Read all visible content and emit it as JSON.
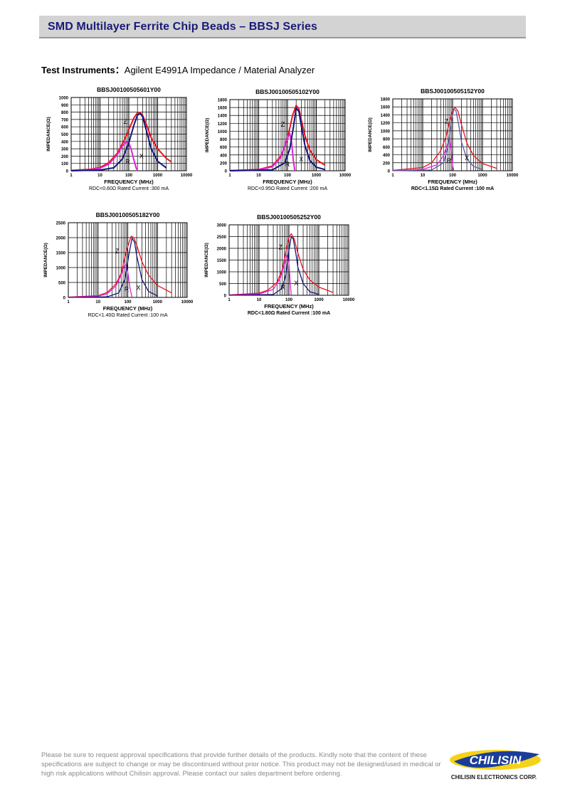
{
  "header": {
    "title": "SMD Multilayer Ferrite Chip Beads – BBSJ Series"
  },
  "instruments": {
    "label": "Test Instruments：",
    "value": "Agilent E4991A Impedance / Material Analyzer"
  },
  "chart_data": [
    {
      "type": "line",
      "title": "BBSJ00100505601Y00",
      "xlabel": "FREQUENCY  (MHz)",
      "ylabel": "IMPEDANCE(Ω)",
      "xscale": "log",
      "xlim": [
        1,
        10000
      ],
      "ylim": [
        0,
        1000
      ],
      "xticks": [
        "1",
        "10",
        "100",
        "1000",
        "10000"
      ],
      "yticks": [
        "0",
        "100",
        "200",
        "300",
        "400",
        "500",
        "600",
        "700",
        "800",
        "900",
        "1000"
      ],
      "caption": "RDC<0.60Ω  Rated Current :300 mA",
      "curve_labels": [
        "Z",
        "R",
        "X"
      ],
      "series": [
        {
          "name": "Z",
          "color": "#e8121e",
          "x": [
            1,
            5,
            10,
            20,
            40,
            70,
            100,
            150,
            200,
            250,
            300,
            400,
            600,
            1000,
            2000,
            3000
          ],
          "values": [
            5,
            20,
            45,
            110,
            240,
            420,
            560,
            720,
            790,
            790,
            760,
            640,
            450,
            300,
            170,
            120
          ]
        },
        {
          "name": "R",
          "color": "#e020d8",
          "x": [
            1,
            5,
            10,
            20,
            40,
            60,
            80,
            100,
            120,
            150,
            180,
            200
          ],
          "values": [
            3,
            15,
            35,
            90,
            220,
            340,
            390,
            380,
            300,
            150,
            40,
            0
          ]
        },
        {
          "name": "X",
          "color": "#15157a",
          "x": [
            1,
            10,
            30,
            60,
            100,
            150,
            200,
            250,
            300,
            400,
            600,
            1000,
            2000
          ],
          "values": [
            0,
            10,
            40,
            160,
            380,
            620,
            760,
            780,
            740,
            560,
            300,
            130,
            40
          ]
        }
      ]
    },
    {
      "type": "line",
      "title": "BBSJ00100505102Y00",
      "xlabel": "FREQUENCY  (MHz)",
      "ylabel": "IMPEDANCE(Ω)",
      "xscale": "log",
      "xlim": [
        1,
        10000
      ],
      "ylim": [
        0,
        1800
      ],
      "xticks": [
        "1",
        "10",
        "100",
        "1000",
        "10000"
      ],
      "yticks": [
        "0",
        "200",
        "400",
        "600",
        "800",
        "1000",
        "1200",
        "1400",
        "1600",
        "1800"
      ],
      "caption": "RDC<0.95Ω  Rated Current :200 mA",
      "curve_labels": [
        "Z",
        "R",
        "X"
      ],
      "series": [
        {
          "name": "Z",
          "color": "#e8121e",
          "x": [
            1,
            10,
            30,
            60,
            100,
            150,
            200,
            250,
            300,
            400,
            600,
            1000,
            2000
          ],
          "values": [
            5,
            30,
            120,
            380,
            800,
            1400,
            1650,
            1560,
            1300,
            900,
            520,
            280,
            140
          ]
        },
        {
          "name": "R",
          "color": "#e020d8",
          "x": [
            1,
            10,
            30,
            60,
            90,
            120,
            140,
            160,
            180
          ],
          "values": [
            2,
            20,
            100,
            350,
            750,
            950,
            700,
            250,
            0
          ]
        },
        {
          "name": "X",
          "color": "#15157a",
          "x": [
            1,
            30,
            80,
            120,
            160,
            200,
            250,
            300,
            400,
            600,
            1000,
            2000
          ],
          "values": [
            0,
            20,
            200,
            550,
            1100,
            1580,
            1500,
            1150,
            650,
            260,
            90,
            30
          ]
        }
      ]
    },
    {
      "type": "line",
      "title": "BBSJ00100505152Y00",
      "xlabel": "FREQUENCY (MHz)",
      "ylabel": "IMPEDANCE(Ω)",
      "xscale": "log",
      "xlim": [
        1,
        10000
      ],
      "ylim": [
        0,
        1800
      ],
      "xticks": [
        "1",
        "10",
        "100",
        "1000",
        "10000"
      ],
      "yticks": [
        "0",
        "200",
        "400",
        "600",
        "800",
        "1000",
        "1200",
        "1400",
        "1600",
        "1800"
      ],
      "caption": "RDC<1.15Ω Rated Current :100 mA",
      "curve_labels": [
        "Z",
        "R",
        "X"
      ],
      "series": [
        {
          "name": "Z",
          "color": "#e8121e",
          "x": [
            1,
            10,
            20,
            40,
            60,
            80,
            100,
            120,
            150,
            200,
            300,
            500,
            1000,
            3000
          ],
          "values": [
            10,
            80,
            200,
            500,
            850,
            1250,
            1500,
            1590,
            1500,
            1150,
            700,
            380,
            180,
            60
          ]
        },
        {
          "name": "R",
          "color": "#e020d8",
          "x": [
            1,
            10,
            30,
            50,
            70,
            80,
            90,
            100,
            110
          ],
          "values": [
            2,
            30,
            150,
            380,
            700,
            780,
            500,
            150,
            0
          ]
        },
        {
          "name": "X",
          "color": "#5a5aa0",
          "x": [
            1,
            20,
            50,
            70,
            90,
            110,
            130,
            160,
            200,
            300,
            500,
            1000
          ],
          "values": [
            0,
            20,
            200,
            600,
            1200,
            1550,
            1500,
            1150,
            720,
            300,
            110,
            30
          ]
        }
      ]
    },
    {
      "type": "line",
      "title": "BBSJ00100505182Y00",
      "xlabel": "FREQUENCY  (MHz)",
      "ylabel": "IMPEDANCE(Ω)",
      "xscale": "log",
      "xlim": [
        1,
        10000
      ],
      "ylim": [
        0,
        2500
      ],
      "xticks": [
        "1",
        "10",
        "100",
        "1000",
        "10000"
      ],
      "yticks": [
        "0",
        "500",
        "1000",
        "1500",
        "2000",
        "2500"
      ],
      "caption": "RDC<1.40Ω  Rated Current :100 mA",
      "curve_labels": [
        "Z",
        "R",
        "X"
      ],
      "series": [
        {
          "name": "Z",
          "color": "#e8121e",
          "x": [
            1,
            10,
            20,
            40,
            60,
            80,
            100,
            130,
            160,
            200,
            300,
            500,
            1000,
            3000
          ],
          "values": [
            8,
            60,
            160,
            450,
            800,
            1350,
            1700,
            2050,
            2000,
            1750,
            1200,
            750,
            400,
            150
          ]
        },
        {
          "name": "R",
          "color": "#e020d8",
          "x": [
            1,
            10,
            20,
            40,
            60,
            80,
            90,
            100,
            120,
            140
          ],
          "values": [
            3,
            40,
            120,
            380,
            750,
            1100,
            1050,
            850,
            300,
            0
          ]
        },
        {
          "name": "X",
          "color": "#15157a",
          "x": [
            1,
            20,
            50,
            80,
            110,
            140,
            170,
            200,
            300,
            500,
            1000
          ],
          "values": [
            0,
            20,
            150,
            600,
            1450,
            1980,
            1850,
            1400,
            600,
            200,
            50
          ]
        }
      ]
    },
    {
      "type": "line",
      "title": "BBSJ00100505252Y00",
      "xlabel": "FREQUENCY (MHz)",
      "ylabel": "IMPEDANCE(Ω)",
      "xscale": "log",
      "xlim": [
        1,
        10000
      ],
      "ylim": [
        0,
        3000
      ],
      "xticks": [
        "1",
        "10",
        "100",
        "1000",
        "10000"
      ],
      "yticks": [
        "0",
        "500",
        "1000",
        "1500",
        "2000",
        "2500",
        "3000"
      ],
      "caption": "RDC<1.80Ω Rated Current :100 mA",
      "curve_labels": [
        "Z",
        "R",
        "X"
      ],
      "series": [
        {
          "name": "Z",
          "color": "#e8121e",
          "x": [
            1,
            10,
            20,
            40,
            60,
            80,
            100,
            120,
            150,
            200,
            300,
            500,
            1000,
            3000
          ],
          "values": [
            15,
            90,
            220,
            550,
            1100,
            1900,
            2450,
            2620,
            2400,
            1800,
            1100,
            650,
            350,
            120
          ]
        },
        {
          "name": "R",
          "color": "#e020d8",
          "x": [
            1,
            10,
            30,
            50,
            70,
            85,
            100,
            110,
            120
          ],
          "values": [
            5,
            50,
            250,
            700,
            1300,
            1700,
            1400,
            600,
            0
          ]
        },
        {
          "name": "X",
          "color": "#15157a",
          "x": [
            1,
            30,
            60,
            80,
            100,
            120,
            140,
            170,
            200,
            300,
            500,
            1000
          ],
          "values": [
            0,
            30,
            300,
            900,
            1900,
            2500,
            2400,
            1800,
            1200,
            500,
            150,
            40
          ]
        }
      ]
    }
  ],
  "footer": {
    "disclaimer": "Please be sure to request approval specifications that provide further details of the products. Kindly note that the content of these specifications are subject to change or may be discontinued without prior notice. This product may not be designed/used in medical or high risk applications without Chilisin approval. Please contact our sales department before ordering."
  },
  "logo": {
    "brand": "CHILISIN",
    "company": "CHILISIN ELECTRONICS CORP.",
    "color": "#1a3d9a",
    "accent": "#f5d21a"
  }
}
